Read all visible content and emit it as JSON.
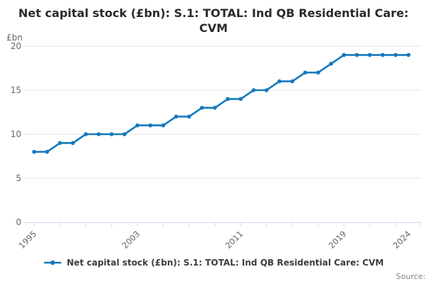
{
  "chart": {
    "source_label": "Source:"
  },
  "chart_data": {
    "type": "line",
    "title": "Net capital stock (£bn): S.1: TOTAL: Ind QB Residential Care: CVM",
    "ylabel": "£bn",
    "xlabel": "",
    "x": [
      1995,
      1996,
      1997,
      1998,
      1999,
      2000,
      2001,
      2002,
      2003,
      2004,
      2005,
      2006,
      2007,
      2008,
      2009,
      2010,
      2011,
      2012,
      2013,
      2014,
      2015,
      2016,
      2017,
      2018,
      2019,
      2020,
      2021,
      2022,
      2023,
      2024
    ],
    "series": [
      {
        "name": "Net capital stock (£bn): S.1: TOTAL: Ind QB Residential Care: CVM",
        "values": [
          8,
          8,
          9,
          9,
          10,
          10,
          10,
          10,
          11,
          11,
          11,
          12,
          12,
          13,
          13,
          14,
          14,
          15,
          15,
          16,
          16,
          17,
          17,
          18,
          19,
          19,
          19,
          19,
          19,
          19
        ]
      }
    ],
    "ylim": [
      0,
      20
    ],
    "yticks": [
      0,
      5,
      10,
      15,
      20
    ],
    "xtick_minor_interval_years": 2,
    "xtick_labels_shown": [
      "1995",
      "2003",
      "2011",
      "2019",
      "2024"
    ],
    "grid": "horizontal",
    "legend_position": "bottom",
    "marker": "circle",
    "colors": {
      "line": "#1479bd",
      "grid": "#e6e6e6",
      "axis": "#ccd6eb",
      "axis_text": "#666666",
      "title_text": "#2b2b2b",
      "legend_text": "#3d3d3d",
      "source_text": "#848484"
    }
  }
}
